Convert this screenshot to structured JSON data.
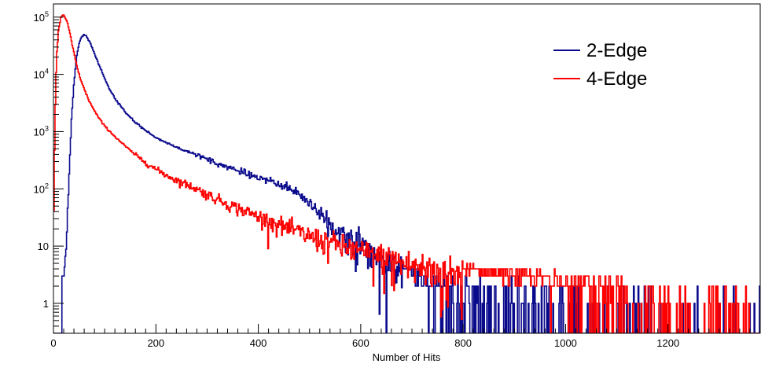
{
  "chart_data": {
    "type": "line",
    "title": "",
    "xlabel": "Number of Hits",
    "ylabel": "",
    "xlim": [
      0,
      1380
    ],
    "ylim": [
      0.3,
      170000
    ],
    "y_scale": "log",
    "grid": false,
    "legend_position": "top-right",
    "x_ticks": [
      "0",
      "200",
      "400",
      "600",
      "800",
      "1000",
      "1200"
    ],
    "y_ticks": [
      {
        "value": 100000,
        "base": "10",
        "exp": "5"
      },
      {
        "value": 10000,
        "base": "10",
        "exp": "4"
      },
      {
        "value": 1000,
        "base": "10",
        "exp": "3"
      },
      {
        "value": 100,
        "base": "10",
        "exp": "2"
      },
      {
        "value": 10,
        "base": "10",
        "exp": ""
      },
      {
        "value": 1,
        "base": "1",
        "exp": ""
      }
    ],
    "series": [
      {
        "name": "2-Edge",
        "color": "#0a0a8c",
        "x": [
          0,
          10,
          15,
          20,
          25,
          30,
          35,
          40,
          45,
          50,
          55,
          60,
          65,
          70,
          75,
          80,
          90,
          100,
          110,
          120,
          140,
          160,
          180,
          200,
          225,
          250,
          275,
          300,
          325,
          350,
          375,
          400,
          425,
          450,
          475,
          500,
          525,
          550,
          575,
          600,
          625,
          650,
          675,
          700,
          750,
          800,
          850,
          900,
          1000,
          1100,
          1150,
          1380
        ],
        "y": [
          0.3,
          0.3,
          0.6,
          2,
          10,
          120,
          1500,
          7000,
          20000,
          35000,
          46000,
          50000,
          46000,
          38000,
          30000,
          23000,
          14000,
          8500,
          5500,
          3800,
          2200,
          1450,
          1050,
          780,
          620,
          480,
          410,
          330,
          270,
          220,
          190,
          160,
          135,
          110,
          88,
          55,
          32,
          20,
          14,
          10,
          7,
          5,
          3.5,
          2.2,
          1.4,
          1,
          0.8,
          0.6,
          0.45,
          0.4,
          0.35,
          0.3
        ]
      },
      {
        "name": "4-Edge",
        "color": "#ff0000",
        "x": [
          0,
          3,
          6,
          10,
          14,
          18,
          20,
          24,
          28,
          32,
          36,
          40,
          45,
          50,
          60,
          70,
          80,
          90,
          100,
          120,
          140,
          160,
          180,
          200,
          225,
          250,
          275,
          300,
          350,
          400,
          450,
          500,
          550,
          600,
          650,
          700,
          750,
          800,
          850,
          900,
          1000,
          1100,
          1150,
          1180,
          1380
        ],
        "y": [
          15,
          1500,
          20000,
          60000,
          95000,
          110000,
          108000,
          95000,
          75000,
          52000,
          35000,
          24000,
          15000,
          10000,
          5500,
          3400,
          2300,
          1650,
          1250,
          820,
          560,
          390,
          290,
          220,
          165,
          130,
          105,
          80,
          50,
          33,
          22,
          15,
          11,
          8,
          6,
          4.5,
          3.5,
          3,
          2.5,
          2,
          1.5,
          1,
          0.6,
          0.4,
          0.3
        ]
      }
    ]
  }
}
